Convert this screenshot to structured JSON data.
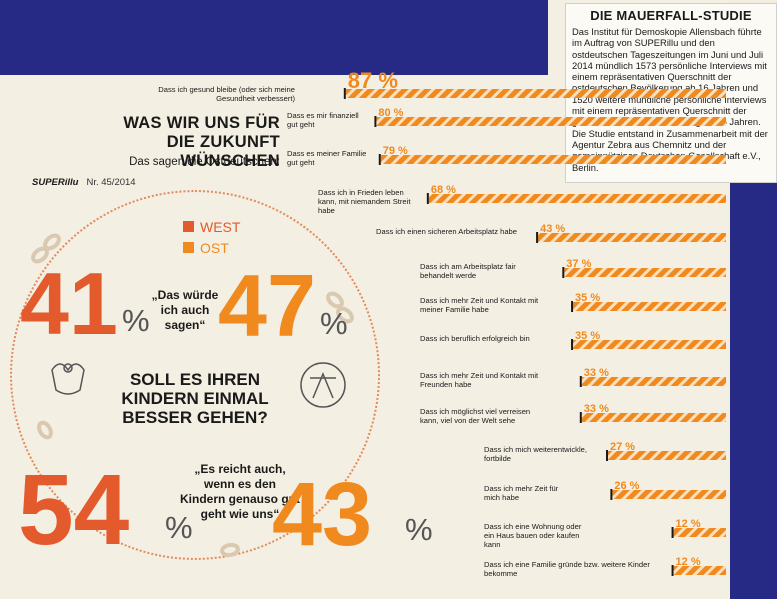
{
  "info": {
    "title": "DIE MAUERFALL-STUDIE",
    "text": "Das Institut für Demoskopie Allensbach führte im Auftrag von SUPERillu und den ostdeutschen Tageszeitungen im Juni und Juli 2014 mündlich 1573 persönliche Interviews mit einem repräsentativen Querschnitt der ostdeutschen Bevölkerung ab 16 Jahren und 1520 weitere mündliche persönliche Interviews mit einem repräsentativen Querschnitt der gesamtdeutschen Bevölkerung ab 16 Jahren. Die Studie entstand in Zusammenarbeit mit der Agentur Zebra aus Chemnitz und der gemeinnützigen Deutschen Gesellschaft e.V., Berlin."
  },
  "headline": {
    "line1": "WAS WIR UNS FÜR",
    "line2": "DIE ZUKUNFT WÜNSCHEN",
    "sub": "Das sagen die Ostdeutschen:"
  },
  "brand": {
    "name": "SUPERillu",
    "issue": "Nr. 45/2014"
  },
  "legend": {
    "west": "WEST",
    "ost": "OST"
  },
  "question": "SOLL ES IHREN KINDERN EINMAL BESSER GEHEN?",
  "answers": {
    "same": {
      "quote": "„Das würde ich auch sagen“",
      "west": "41",
      "ost": "47"
    },
    "enough": {
      "quote": "„Es reicht auch, wenn es den Kindern genauso gut geht wie uns“",
      "west": "54",
      "ost": "43"
    },
    "percent_sign": "%"
  },
  "colors": {
    "west": "#e35a2c",
    "ost": "#f08a1e",
    "navy": "#262a85",
    "stripe": "#fbe0c0"
  },
  "chart_data": {
    "type": "bar",
    "title": "WAS WIR UNS FÜR DIE ZUKUNFT WÜNSCHEN",
    "subtitle": "Das sagen die Ostdeutschen:",
    "unit": "%",
    "categories": [
      "Dass ich gesund bleibe (oder sich meine Gesundheit verbessert)",
      "Dass es mir finanziell gut geht",
      "Dass es meiner Familie gut geht",
      "Dass ich in Frieden leben kann, mit niemandem Streit habe",
      "Dass ich einen sicheren Arbeitsplatz habe",
      "Dass ich am Arbeitsplatz fair behandelt werde",
      "Dass ich mehr Zeit und Kontakt mit meiner Familie habe",
      "Dass ich beruflich erfolgreich bin",
      "Dass ich mehr Zeit und Kontakt mit Freunden habe",
      "Dass ich möglichst viel verreisen kann, viel von der Welt sehe",
      "Dass ich mich weiterentwickle, fortbilde",
      "Dass ich mehr Zeit für mich habe",
      "Dass ich eine Wohnung oder ein Haus bauen oder kaufen kann",
      "Dass ich eine Familie gründe bzw. weitere Kinder bekomme"
    ],
    "values": [
      87,
      80,
      79,
      68,
      43,
      37,
      35,
      35,
      33,
      33,
      27,
      26,
      12,
      12
    ],
    "value_labels": [
      "87 %",
      "80 %",
      "79 %",
      "68 %",
      "43 %",
      "37 %",
      "35 %",
      "35 %",
      "33 %",
      "33 %",
      "27 %",
      "26 %",
      "12 %",
      "12 %"
    ],
    "grid": false
  }
}
